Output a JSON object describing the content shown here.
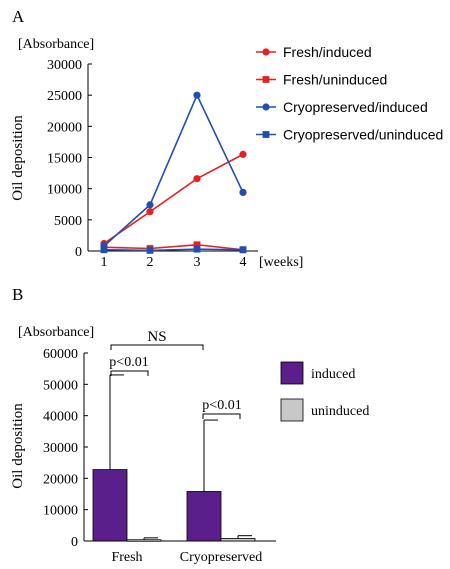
{
  "colors": {
    "fresh": "#e8201f",
    "cryo": "#1f4fb4",
    "induced": "#5b1f8c",
    "uninduced": "#c8c8c8",
    "axis": "#000000"
  },
  "panelA": {
    "label": "A",
    "unit": "[Absorbance]",
    "ylabel": "Oil deposition",
    "xunit": "[weeks]"
  },
  "panelB": {
    "label": "B",
    "unit": "[Absorbance]",
    "ylabel": "Oil deposition",
    "annotations": {
      "ns": "NS",
      "fresh_sig": "p<0.01",
      "cryo_sig": "p<0.01"
    }
  },
  "chart_data": [
    {
      "type": "line",
      "x": [
        1,
        2,
        3,
        4
      ],
      "xticks": [
        "1",
        "2",
        "3",
        "4"
      ],
      "ylim": [
        0,
        30000
      ],
      "yticks": [
        "0",
        "5000",
        "10000",
        "15000",
        "20000",
        "25000",
        "30000"
      ],
      "legend_placement": "right",
      "series": [
        {
          "name": "Fresh/induced",
          "marker": "circle",
          "color_key": "fresh",
          "values": [
            1200,
            6300,
            11600,
            15500
          ]
        },
        {
          "name": "Fresh/uninduced",
          "marker": "square",
          "color_key": "fresh",
          "values": [
            600,
            400,
            1000,
            200
          ]
        },
        {
          "name": "Cryopreserved/induced",
          "marker": "circle",
          "color_key": "cryo",
          "values": [
            800,
            7400,
            25000,
            9400
          ]
        },
        {
          "name": "Cryopreserved/uninduced",
          "marker": "square",
          "color_key": "cryo",
          "values": [
            200,
            100,
            300,
            200
          ]
        }
      ]
    },
    {
      "type": "bar",
      "categories": [
        "Fresh",
        "Cryopreserved"
      ],
      "ylim": [
        0,
        60000
      ],
      "yticks": [
        "0",
        "10000",
        "20000",
        "30000",
        "40000",
        "50000",
        "60000"
      ],
      "legend_placement": "right",
      "series": [
        {
          "name": "induced",
          "color_key": "induced",
          "values": [
            22800,
            15800
          ],
          "error": [
            30200,
            22800
          ]
        },
        {
          "name": "uninduced",
          "color_key": "uninduced",
          "values": [
            400,
            800
          ],
          "error": [
            600,
            900
          ]
        }
      ]
    }
  ]
}
